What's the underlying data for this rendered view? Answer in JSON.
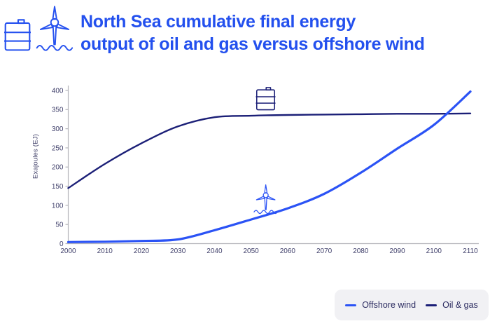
{
  "header": {
    "title_line1": "North Sea cumulative final energy",
    "title_line2": "output of oil and gas versus offshore wind",
    "icons": [
      "oil-barrel-icon",
      "offshore-wind-turbine-icon"
    ]
  },
  "colors": {
    "title_blue": "#2350ee",
    "header_icon_blue": "#2450ef",
    "offshore_wind_blue": "#2b53f5",
    "oil_gas_navy": "#1b1f77",
    "axis_gray": "#b4b4ba",
    "tick_text": "#3f3f6a",
    "legend_background": "#f1f1f4",
    "legend_text": "#2b2b60",
    "page_background": "#ffffff"
  },
  "chart_data": {
    "type": "line",
    "title": "North Sea cumulative final energy output of oil and gas versus offshore wind",
    "xlabel": "",
    "ylabel": "Exajoules (EJ)",
    "x": [
      2000,
      2010,
      2020,
      2030,
      2040,
      2050,
      2060,
      2070,
      2080,
      2090,
      2100,
      2110
    ],
    "xticks": [
      "2000",
      "2010",
      "2020",
      "2030",
      "2040",
      "2050",
      "2060",
      "2070",
      "2080",
      "2090",
      "2100",
      "2110"
    ],
    "ylim": [
      0,
      400
    ],
    "yticks": [
      0,
      50,
      100,
      150,
      200,
      250,
      300,
      350,
      400
    ],
    "grid": false,
    "legend_position": "bottom-right",
    "series": [
      {
        "name": "Offshore wind",
        "color": "#2b53f5",
        "values": [
          4,
          5,
          7,
          11,
          35,
          63,
          92,
          130,
          185,
          248,
          310,
          397
        ],
        "annotation_icon": "offshore-wind-turbine-icon"
      },
      {
        "name": "Oil & gas",
        "color": "#1b1f77",
        "values": [
          145,
          208,
          262,
          306,
          330,
          334,
          336,
          337,
          338,
          339,
          339,
          340
        ],
        "annotation_icon": "oil-barrel-icon"
      }
    ]
  }
}
